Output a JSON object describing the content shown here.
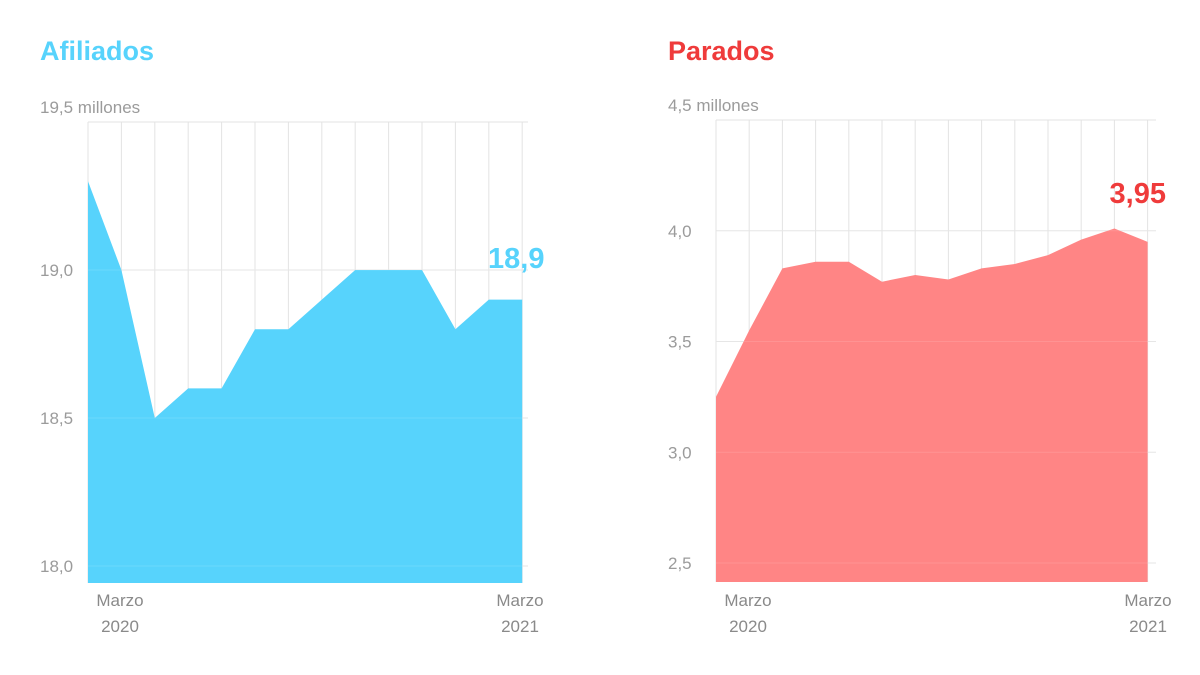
{
  "chart_data": [
    {
      "type": "area",
      "title": "Afiliados",
      "ylabel": "millones",
      "ylim": [
        18.0,
        19.5
      ],
      "y_ticks": [
        "18,0",
        "18,5",
        "19,0",
        "19,5 millones"
      ],
      "y_tick_values": [
        18.0,
        18.5,
        19.0,
        19.5
      ],
      "x_labels": [
        {
          "month": "Marzo",
          "year": "2020"
        },
        {
          "month": "Marzo",
          "year": "2021"
        }
      ],
      "x": [
        1,
        2,
        3,
        4,
        5,
        6,
        7,
        8,
        9,
        10,
        11,
        12,
        13,
        14
      ],
      "values": [
        19.3,
        19.0,
        18.5,
        18.6,
        18.6,
        18.8,
        18.8,
        18.9,
        19.0,
        19.0,
        19.0,
        18.8,
        18.9,
        18.9
      ],
      "end_label": "18,9",
      "color": "#57d3fc",
      "grid": true
    },
    {
      "type": "area",
      "title": "Parados",
      "ylabel": "millones",
      "ylim": [
        2.4,
        4.5
      ],
      "y_ticks": [
        "2,5",
        "3,0",
        "3,5",
        "4,0",
        "4,5 millones"
      ],
      "y_tick_values": [
        2.5,
        3.0,
        3.5,
        4.0,
        4.5
      ],
      "x_labels": [
        {
          "month": "Marzo",
          "year": "2020"
        },
        {
          "month": "Marzo",
          "year": "2021"
        }
      ],
      "x": [
        1,
        2,
        3,
        4,
        5,
        6,
        7,
        8,
        9,
        10,
        11,
        12,
        13,
        14
      ],
      "values": [
        3.25,
        3.55,
        3.83,
        3.86,
        3.86,
        3.77,
        3.8,
        3.78,
        3.83,
        3.85,
        3.89,
        3.96,
        4.01,
        3.95
      ],
      "end_label": "3,95",
      "color": "#ff8585",
      "grid": true
    }
  ]
}
